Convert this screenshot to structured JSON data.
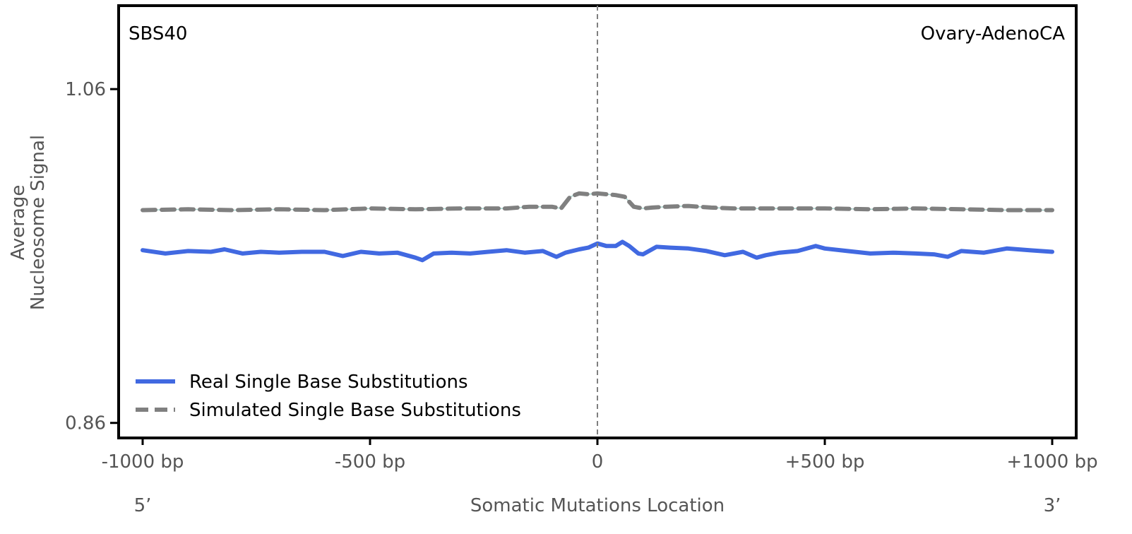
{
  "chart_data": {
    "type": "line",
    "signature_label": "SBS40",
    "cancer_type_label": "Ovary-AdenoCA",
    "xlabel": "Somatic Mutations Location",
    "ylabel_line1": "Average",
    "ylabel_line2": "Nucleosome Signal",
    "end_label_5": "5’",
    "end_label_3": "3’",
    "xlim": [
      -1000,
      1000
    ],
    "ylim": [
      0.851,
      1.11
    ],
    "x_ticks": [
      {
        "value": -1000,
        "label": "-1000 bp"
      },
      {
        "value": -500,
        "label": "-500 bp"
      },
      {
        "value": 0,
        "label": "0"
      },
      {
        "value": 500,
        "label": "+500 bp"
      },
      {
        "value": 1000,
        "label": "+1000 bp"
      }
    ],
    "y_ticks": [
      {
        "value": 1.06,
        "label": "1.06"
      },
      {
        "value": 0.86,
        "label": "0.86"
      }
    ],
    "center_line_x": 0,
    "grid": false,
    "legend_position": "lower-left",
    "series": [
      {
        "name": "Real Single Base Substitutions",
        "color": "#4169e1",
        "style": "solid",
        "x": [
          -1000,
          -950,
          -900,
          -850,
          -820,
          -780,
          -740,
          -700,
          -650,
          -600,
          -560,
          -520,
          -480,
          -440,
          -400,
          -385,
          -360,
          -320,
          -280,
          -240,
          -200,
          -160,
          -120,
          -90,
          -70,
          -40,
          -20,
          0,
          20,
          40,
          55,
          70,
          90,
          100,
          130,
          160,
          200,
          240,
          280,
          320,
          350,
          370,
          400,
          440,
          480,
          500,
          550,
          600,
          650,
          700,
          740,
          770,
          800,
          850,
          900,
          950,
          1000
        ],
        "y": [
          0.9635,
          0.9615,
          0.963,
          0.9625,
          0.964,
          0.9615,
          0.9625,
          0.962,
          0.9625,
          0.9625,
          0.96,
          0.9625,
          0.9615,
          0.962,
          0.959,
          0.9575,
          0.9615,
          0.962,
          0.9615,
          0.9625,
          0.9635,
          0.962,
          0.963,
          0.9595,
          0.962,
          0.964,
          0.965,
          0.9675,
          0.966,
          0.966,
          0.9685,
          0.966,
          0.9615,
          0.961,
          0.9655,
          0.965,
          0.9645,
          0.963,
          0.9605,
          0.9625,
          0.959,
          0.9605,
          0.962,
          0.963,
          0.966,
          0.9645,
          0.963,
          0.9615,
          0.962,
          0.9615,
          0.961,
          0.9595,
          0.963,
          0.962,
          0.9645,
          0.9635,
          0.9625
        ]
      },
      {
        "name": "Simulated Single Base Substitutions",
        "color": "#808080",
        "style": "dashed",
        "x": [
          -1000,
          -900,
          -800,
          -700,
          -600,
          -500,
          -400,
          -300,
          -200,
          -150,
          -100,
          -80,
          -60,
          -40,
          -20,
          0,
          20,
          40,
          60,
          80,
          100,
          120,
          150,
          200,
          250,
          300,
          400,
          500,
          600,
          700,
          800,
          900,
          1000
        ],
        "y": [
          0.9875,
          0.988,
          0.9875,
          0.988,
          0.9875,
          0.9885,
          0.988,
          0.9885,
          0.9885,
          0.9895,
          0.9895,
          0.9885,
          0.9955,
          0.9975,
          0.997,
          0.9975,
          0.997,
          0.9965,
          0.9955,
          0.9895,
          0.9885,
          0.989,
          0.9895,
          0.99,
          0.989,
          0.9885,
          0.9885,
          0.9885,
          0.988,
          0.9885,
          0.988,
          0.9875,
          0.9875
        ]
      }
    ]
  }
}
